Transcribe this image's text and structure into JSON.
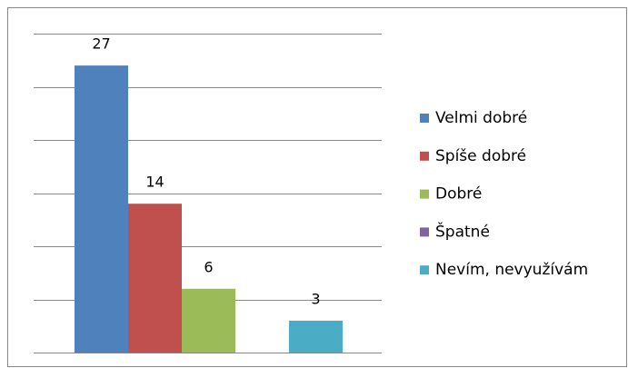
{
  "chart_data": {
    "type": "bar",
    "series": [
      {
        "name": "Velmi dobré",
        "color": "#4f81bd",
        "values": [
          27
        ]
      },
      {
        "name": "Spíše dobré",
        "color": "#c0504d",
        "values": [
          14
        ]
      },
      {
        "name": "Dobré",
        "color": "#9bbb59",
        "values": [
          6
        ]
      },
      {
        "name": "Špatné",
        "color": "#8064a2",
        "values": [
          null
        ]
      },
      {
        "name": "Nevím, nevyužívám",
        "color": "#4bacc6",
        "values": [
          3
        ]
      }
    ],
    "ylim": [
      0,
      30
    ],
    "yticks": [
      0,
      5,
      10,
      15,
      20,
      25,
      30
    ],
    "grid": true,
    "legend": "right"
  }
}
